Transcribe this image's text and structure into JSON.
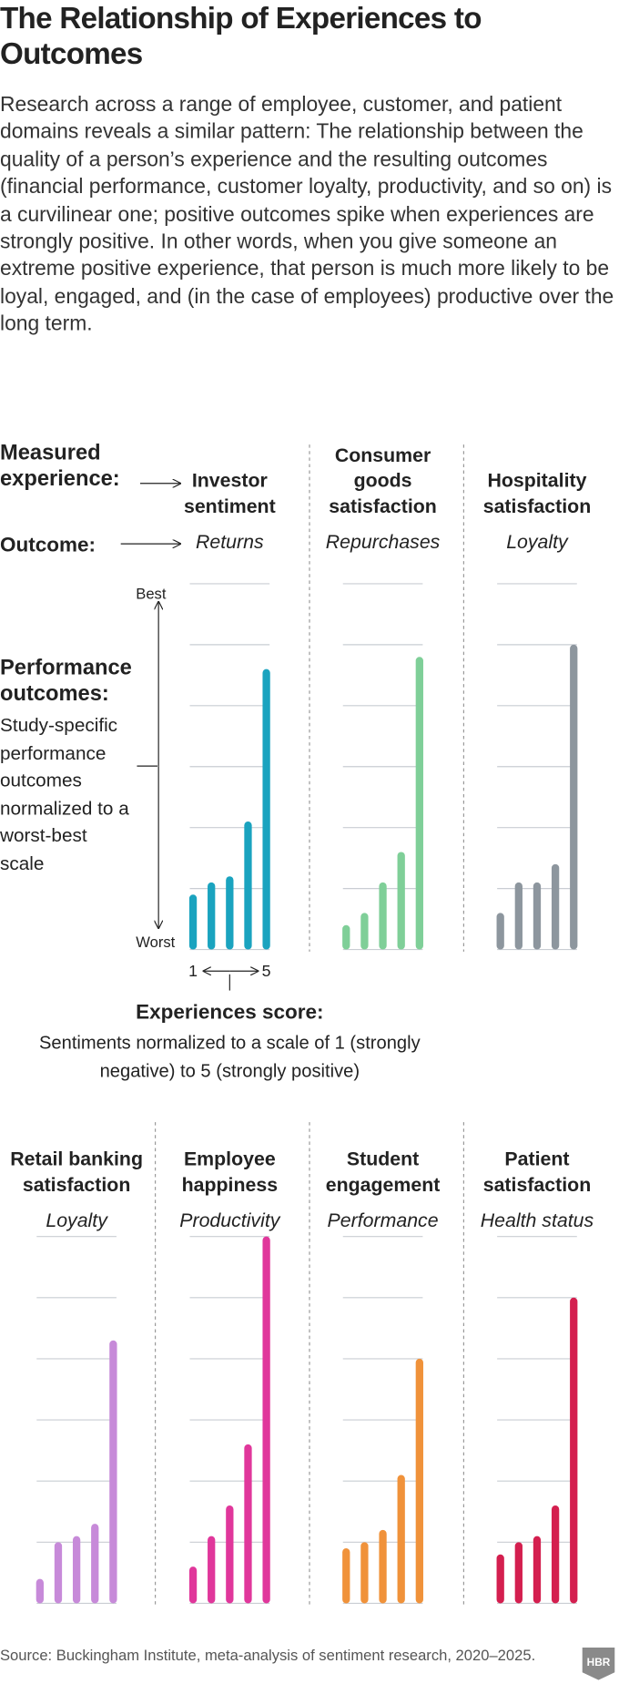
{
  "title": "The Relationship of Experiences to Outcomes",
  "intro": "Research across a range of employee, customer, and patient domains reveals a similar pattern: The relationship between the quality of a person’s experience and the resulting outcomes (financial performance, customer loyalty, productivity, and so on) is a curvilinear one; positive outcomes spike when experiences are strongly positive. In other words, when you give someone an extreme positive experience, that person is much more likely to be loyal, engaged, and (in the case of employees) productive over the long term.",
  "labels": {
    "measured": "Measured experience:",
    "outcome": "Outcome:",
    "best": "Best",
    "worst": "Worst",
    "performance_title": "Performance outcomes:",
    "performance_desc": "Study-specific performance outcomes normalized to a worst-best scale",
    "score_title": "Experiences score:",
    "score_desc": "Sentiments normalized to a scale of 1 (strongly negative) to 5 (strongly positive)"
  },
  "source": "Source: Buckingham Institute, meta-analysis of sentiment research, 2020–2025.",
  "logo": "HBR",
  "chart_data": [
    {
      "type": "bar",
      "title": "Investor sentiment",
      "subtitle": "Returns",
      "color": "#1aa3bf",
      "categories": [
        "1",
        null,
        null,
        null,
        "5"
      ],
      "values": [
        0.9,
        1.1,
        1.2,
        2.1,
        4.6
      ],
      "ylim": [
        0,
        6
      ],
      "yticks": [
        0,
        1,
        2,
        3,
        4,
        5,
        6
      ],
      "grid": true
    },
    {
      "type": "bar",
      "title": "Consumer goods satisfaction",
      "subtitle": "Repurchases",
      "color": "#7fcf98",
      "values": [
        0.4,
        0.6,
        1.1,
        1.6,
        4.8
      ],
      "ylim": [
        0,
        6
      ],
      "yticks": [
        0,
        1,
        2,
        3,
        4,
        5,
        6
      ],
      "grid": true
    },
    {
      "type": "bar",
      "title": "Hospitality satisfaction",
      "subtitle": "Loyalty",
      "color": "#8d969e",
      "values": [
        0.6,
        1.1,
        1.1,
        1.4,
        5.0
      ],
      "ylim": [
        0,
        6
      ],
      "yticks": [
        0,
        1,
        2,
        3,
        4,
        5,
        6
      ],
      "grid": true
    },
    {
      "type": "bar",
      "title": "Retail banking satisfaction",
      "subtitle": "Loyalty",
      "color": "#c78ad9",
      "values": [
        0.4,
        1.0,
        1.1,
        1.3,
        4.3
      ],
      "ylim": [
        0,
        6
      ],
      "yticks": [
        0,
        1,
        2,
        3,
        4,
        5,
        6
      ],
      "grid": true
    },
    {
      "type": "bar",
      "title": "Employee happiness",
      "subtitle": "Productivity",
      "color": "#e0379b",
      "values": [
        0.6,
        1.1,
        1.6,
        2.6,
        6.0
      ],
      "ylim": [
        0,
        6
      ],
      "yticks": [
        0,
        1,
        2,
        3,
        4,
        5,
        6
      ],
      "grid": true
    },
    {
      "type": "bar",
      "title": "Student engagement",
      "subtitle": "Performance",
      "color": "#f0923a",
      "values": [
        0.9,
        1.0,
        1.2,
        2.1,
        4.0
      ],
      "ylim": [
        0,
        6
      ],
      "yticks": [
        0,
        1,
        2,
        3,
        4,
        5,
        6
      ],
      "grid": true
    },
    {
      "type": "bar",
      "title": "Patient satisfaction",
      "subtitle": "Health status",
      "color": "#d41f4f",
      "values": [
        0.8,
        1.0,
        1.1,
        1.6,
        5.0
      ],
      "ylim": [
        0,
        6
      ],
      "yticks": [
        0,
        1,
        2,
        3,
        4,
        5,
        6
      ],
      "grid": true
    }
  ]
}
